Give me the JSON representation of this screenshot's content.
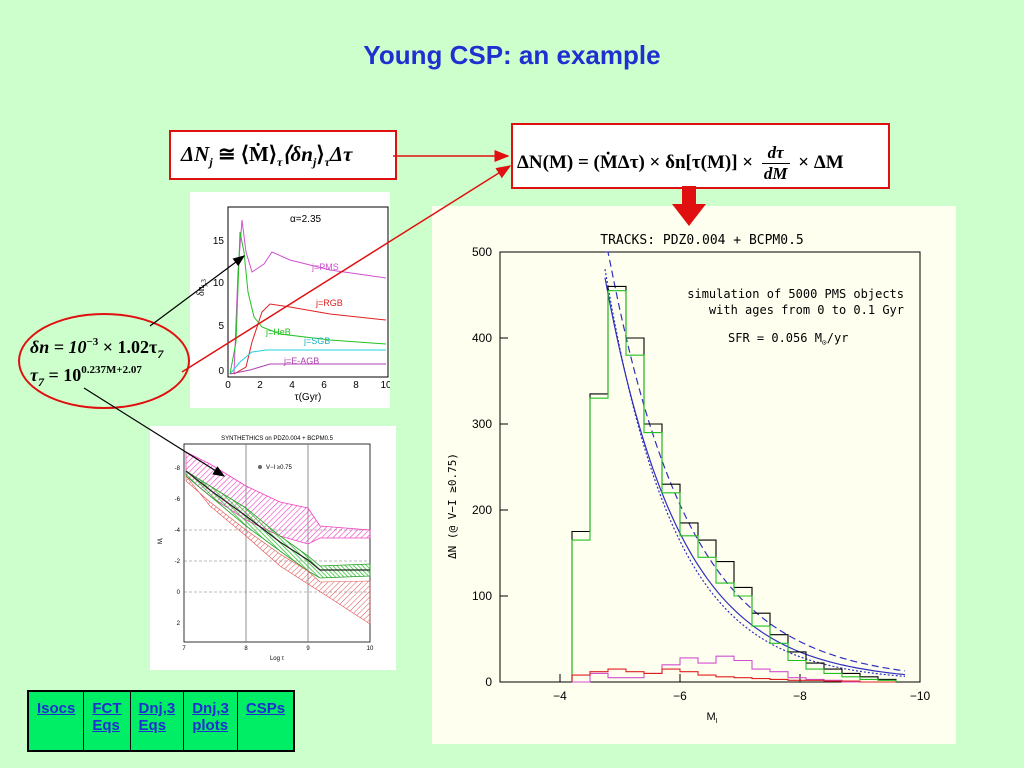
{
  "slide": {
    "title": "Young CSP: an example"
  },
  "equations": {
    "eq1": {
      "lhs": "ΔN",
      "lhs_sub": "j",
      "rhs": " ≅ ⟨Ṁ⟩",
      "rhs_sub1": "τ",
      "rhs2": "⟨δn",
      "rhs_sub2": "j",
      "rhs3": "⟩",
      "rhs_sub3": "τ",
      "rhs4": "Δτ"
    },
    "eq2": {
      "part1": "ΔN(M) = (ṀΔτ) × δn[τ(M)] ×",
      "frac_num": "dτ",
      "frac_den": "dM",
      "part2": "× ΔM"
    },
    "ellipse_eq": {
      "line1_a": "δn = 10",
      "line1_exp": "−3",
      "line1_b": " × 1.02τ",
      "line1_sub": "7",
      "line2_a": "τ",
      "line2_sub": "7",
      "line2_b": " = 10",
      "line2_exp": "0.237M+2.07"
    }
  },
  "plot1": {
    "annotation": "α=2.35",
    "y_ticks": [
      "15",
      "10",
      "5",
      "0"
    ],
    "x_ticks": [
      "0",
      "2",
      "4",
      "6",
      "8",
      "10"
    ],
    "ylabel": "δn",
    "ylabel_sub": "j,3",
    "xlabel": "τ(Gyr)",
    "curve_labels": {
      "pms": "j=PMS",
      "rgb": "j=RGB",
      "heb": "j=HeB",
      "sgb": "j=SGB",
      "eagb": "j=E-AGB"
    },
    "colors": {
      "pms": "#d050d0",
      "rgb": "#e02020",
      "heb": "#20c020",
      "sgb": "#20d0e0",
      "eagb": "#b040b0"
    }
  },
  "plot2": {
    "title": "SYNTHETHICS on PDZ0.004 + BCPM0.5",
    "legend": "V−I ≥0.75",
    "y_ticks": [
      "-8",
      "-6",
      "-4",
      "-2",
      "0",
      "2"
    ],
    "x_ticks": [
      "7",
      "8",
      "9",
      "10"
    ],
    "xlabel": "Log τ",
    "ylabel": "M",
    "ylabel_sub": "I"
  },
  "chart_data": {
    "type": "bar",
    "title": "TRACKS: PDZ0.004 + BCPM0.5",
    "annotation_1": "simulation of 5000 PMS objects",
    "annotation_2": "with ages from 0 to 0.1 Gyr",
    "annotation_3": "SFR = 0.056 M",
    "annotation_3_sub": "⊙",
    "annotation_3_end": "/yr",
    "xlabel": "M",
    "xlabel_sub": "I",
    "ylabel": "ΔN (@ V−I ≥0.75)",
    "xlim": [
      -3,
      -10
    ],
    "ylim": [
      0,
      500
    ],
    "x_tick_labels": [
      "−4",
      "−6",
      "−8",
      "−10"
    ],
    "x_ticks": [
      -4,
      -6,
      -8,
      -10
    ],
    "y_ticks": [
      0,
      100,
      200,
      300,
      400,
      500
    ],
    "bin_edges": [
      -4.2,
      -4.5,
      -4.8,
      -5.1,
      -5.4,
      -5.7,
      -6.0,
      -6.3,
      -6.6,
      -6.9,
      -7.2,
      -7.5,
      -7.8,
      -8.1,
      -8.4,
      -8.7,
      -9.0,
      -9.3,
      -9.6
    ],
    "series": [
      {
        "color": "#000000",
        "values": [
          175,
          335,
          460,
          400,
          300,
          230,
          185,
          165,
          140,
          110,
          80,
          55,
          35,
          22,
          15,
          10,
          6,
          3
        ]
      },
      {
        "color": "#20c020",
        "values": [
          165,
          330,
          455,
          380,
          290,
          220,
          170,
          145,
          115,
          100,
          65,
          45,
          25,
          15,
          10,
          6,
          3,
          2
        ]
      },
      {
        "color": "#d050d0",
        "values": [
          0,
          10,
          5,
          5,
          10,
          20,
          28,
          22,
          30,
          25,
          15,
          12,
          5,
          3,
          2,
          0,
          0,
          0
        ]
      },
      {
        "color": "#e02020",
        "values": [
          8,
          12,
          15,
          12,
          10,
          15,
          12,
          8,
          6,
          5,
          4,
          3,
          2,
          2,
          1,
          1,
          0,
          0
        ]
      }
    ],
    "model_curves": {
      "line_color": "#3030c0",
      "styles": [
        "solid",
        "dashed",
        "dotted"
      ]
    },
    "colors": {
      "red_accent": "#e01010",
      "title_blue": "#1f2fd0",
      "background": "#ccffcc"
    }
  },
  "nav": {
    "links": [
      {
        "label": "Isocs"
      },
      {
        "label1": "FCT",
        "label2": "Eqs"
      },
      {
        "label1": "Dnj,3",
        "label2": "Eqs"
      },
      {
        "label1": "Dnj,3",
        "label2": "plots"
      },
      {
        "label": "CSPs"
      }
    ]
  }
}
